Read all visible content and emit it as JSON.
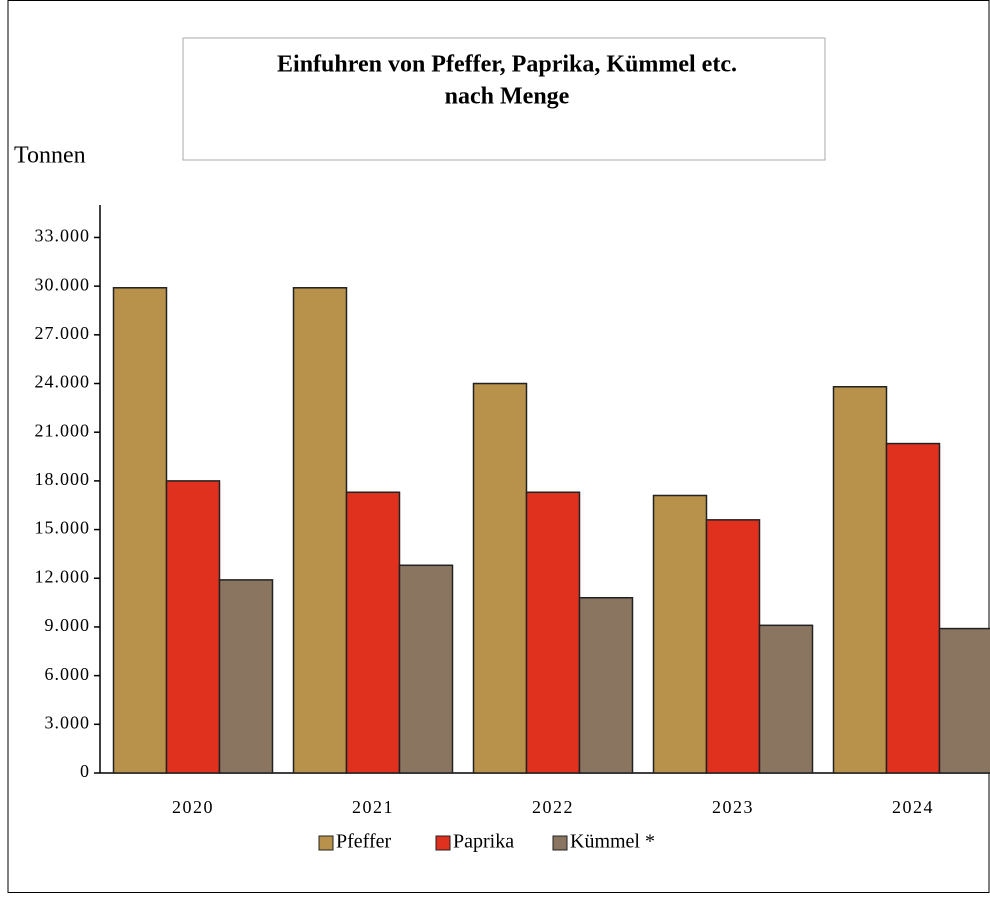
{
  "chart_data": {
    "type": "bar",
    "title": "Einfuhren von Pfeffer, Paprika, Kümmel  etc.",
    "subtitle": "nach Menge",
    "y_label": "Tonnen",
    "categories": [
      "2020",
      "2021",
      "2022",
      "2023",
      "2024"
    ],
    "series": [
      {
        "name": "Pfeffer",
        "color": "#b8924a",
        "values": [
          29900,
          29900,
          24000,
          17100,
          23800
        ]
      },
      {
        "name": "Paprika",
        "color": "#e0301e",
        "values": [
          18000,
          17300,
          17300,
          15600,
          20300
        ]
      },
      {
        "name": "Kümmel *",
        "color": "#8a7560",
        "values": [
          11900,
          12800,
          10800,
          9100,
          8900
        ]
      }
    ],
    "ylim": [
      0,
      35000
    ],
    "yticks": [
      0,
      {
        "value": 3000,
        "label": "3.000"
      },
      {
        "value": 6000,
        "label": "6.000"
      },
      {
        "value": 9000,
        "label": "9.000"
      },
      {
        "value": 12000,
        "label": "12.000"
      },
      {
        "value": 15000,
        "label": "15.000"
      },
      {
        "value": 18000,
        "label": "18.000"
      },
      {
        "value": 21000,
        "label": "21.000"
      },
      {
        "value": 24000,
        "label": "24.000"
      },
      {
        "value": 27000,
        "label": "27.000"
      },
      {
        "value": 30000,
        "label": "30.000"
      },
      {
        "value": 33000,
        "label": "33.000"
      }
    ],
    "grid": false,
    "legend": "bottom"
  }
}
